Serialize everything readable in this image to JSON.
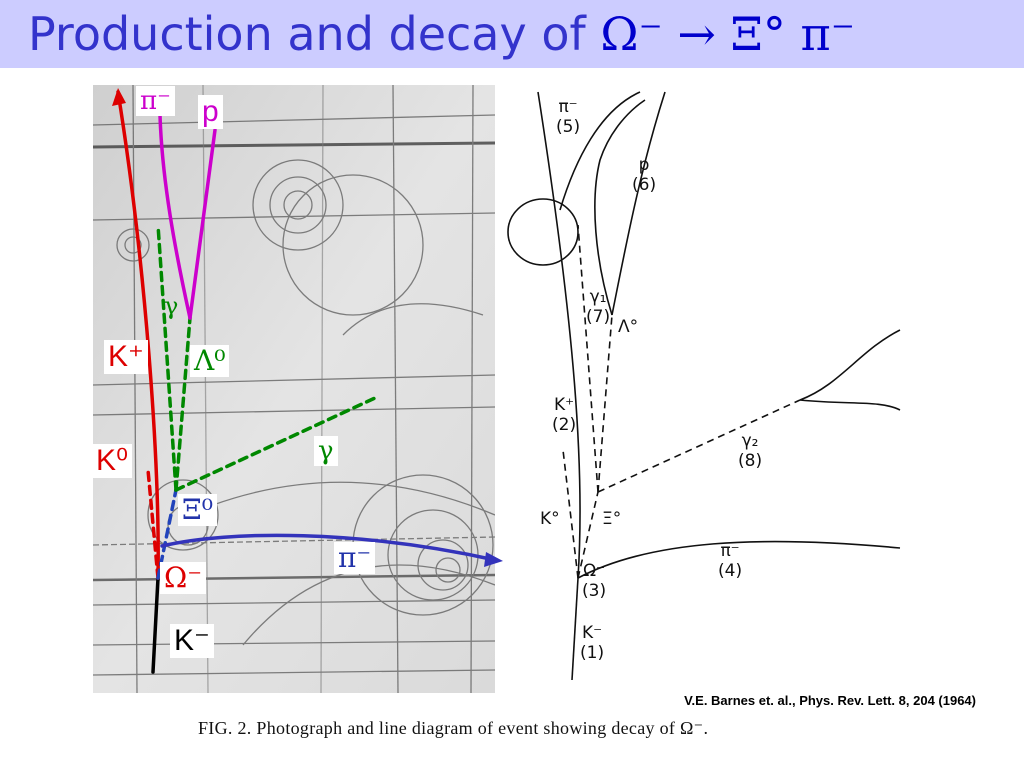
{
  "slide": {
    "title_text": "Production and decay of ",
    "title_formula": "Ω⁻ → Ξ° π⁻",
    "citation": "V.E. Barnes et. al., Phys. Rev. Lett. 8, 204 (1964)",
    "caption": "FIG. 2.  Photograph and line diagram of event showing decay of Ω⁻."
  },
  "photo_labels": {
    "pi_minus_top": "π⁻",
    "proton": "p",
    "gamma_upper": "γ",
    "k_plus": "K⁺",
    "lambda0": "Λ⁰",
    "gamma_right": "γ",
    "k0": "K⁰",
    "xi0": "Ξ⁰",
    "pi_minus_right": "π⁻",
    "omega_minus": "Ω⁻",
    "k_minus": "K⁻"
  },
  "diagram_labels": {
    "pi5": "π⁻\n(5)",
    "p6": "p\n(6)",
    "gamma7": "γ₁\n(7)",
    "lambda0": "Λ°",
    "kplus2": "K⁺\n(2)",
    "gamma8": "γ₂\n(8)",
    "k0": "K°",
    "xi0": "Ξ°",
    "pi4": "π⁻\n(4)",
    "omega3": "Ω⁻\n(3)",
    "kminus1": "K⁻\n(1)"
  },
  "colors": {
    "title_bg": "#ccccff",
    "title_text": "#3333cc",
    "k_plus_track": "#dd0000",
    "proton_pion_tracks": "#cc00cc",
    "gamma_lambda_tracks": "#008800",
    "xi_pion_track": "#3333bb",
    "k_minus_track": "#000000"
  }
}
